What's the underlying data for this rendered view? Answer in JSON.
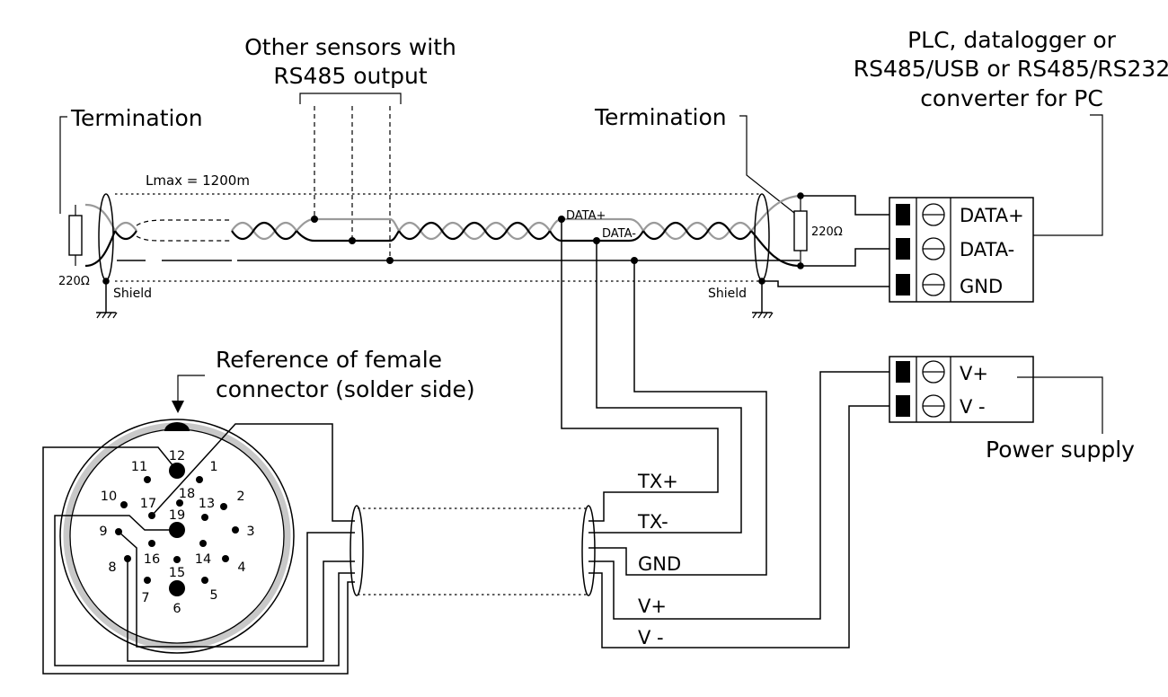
{
  "labels": {
    "other_sensors_1": "Other sensors with",
    "other_sensors_2": "RS485 output",
    "plc_1": "PLC, datalogger or",
    "plc_2": "RS485/USB or RS485/RS232",
    "plc_3": "converter for PC",
    "termination_left": "Termination",
    "termination_right": "Termination",
    "lmax": "Lmax = 1200m",
    "resistor_left": "220Ω",
    "resistor_right": "220Ω",
    "shield_left": "Shield",
    "shield_right": "Shield",
    "data_plus_small": "DATA+",
    "data_minus_small": "DATA-",
    "reference_1": "Reference of female",
    "reference_2": "connector (solder side)",
    "power_supply": "Power supply"
  },
  "plc_terminal": {
    "terminals": [
      "DATA+",
      "DATA-",
      "GND"
    ]
  },
  "power_terminal": {
    "terminals": [
      "V+",
      "V -"
    ]
  },
  "cable_wires": [
    "TX+",
    "TX-",
    "GND",
    "V+",
    "V -"
  ],
  "connector_pins": [
    "1",
    "2",
    "3",
    "4",
    "5",
    "6",
    "7",
    "8",
    "9",
    "10",
    "11",
    "12",
    "13",
    "14",
    "15",
    "16",
    "17",
    "18",
    "19"
  ]
}
